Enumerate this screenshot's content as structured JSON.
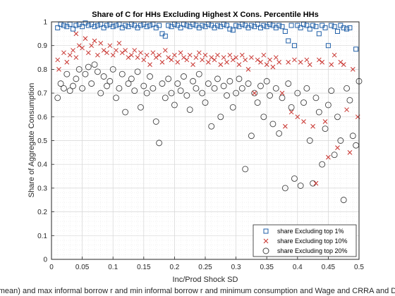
{
  "chart_data": {
    "type": "scatter",
    "title": "Share of C for HHs Excluding Highest X Cons. Percentile HHs",
    "xlabel": "Inc/Prod Shock SD",
    "ylabel": "Share of Aggregate Consumption",
    "footer_caption": "mean) and max informal borrow r and min informal borrow r and minimum consumption and Wage and CRRA and D",
    "xlim": [
      0,
      0.5
    ],
    "ylim": [
      0,
      1
    ],
    "xticks": [
      0,
      0.05,
      0.1,
      0.15,
      0.2,
      0.25,
      0.3,
      0.35,
      0.4,
      0.45,
      0.5
    ],
    "yticks": [
      0,
      0.1,
      0.2,
      0.3,
      0.4,
      0.5,
      0.6,
      0.7,
      0.8,
      0.9,
      1
    ],
    "xtick_labels": [
      "0",
      "0.05",
      "0.1",
      "0.15",
      "0.2",
      "0.25",
      "0.3",
      "0.35",
      "0.4",
      "0.45",
      "0.5"
    ],
    "ytick_labels": [
      "0",
      "0.1",
      "0.2",
      "0.3",
      "0.4",
      "0.5",
      "0.6",
      "0.7",
      "0.8",
      "0.9",
      "1"
    ],
    "grid": true,
    "minor_grid": true,
    "legend_position": "bottom-right",
    "series": [
      {
        "name": "share Excluding top 1%",
        "marker": "square",
        "color": "#1f5fa8",
        "points": [
          [
            0.01,
            0.975
          ],
          [
            0.015,
            0.99
          ],
          [
            0.02,
            0.985
          ],
          [
            0.025,
            0.98
          ],
          [
            0.03,
            0.99
          ],
          [
            0.035,
            0.97
          ],
          [
            0.04,
            0.985
          ],
          [
            0.045,
            0.99
          ],
          [
            0.05,
            0.98
          ],
          [
            0.055,
            0.995
          ],
          [
            0.06,
            0.985
          ],
          [
            0.065,
            0.99
          ],
          [
            0.07,
            0.98
          ],
          [
            0.075,
            0.985
          ],
          [
            0.08,
            0.99
          ],
          [
            0.085,
            0.975
          ],
          [
            0.09,
            0.985
          ],
          [
            0.095,
            0.99
          ],
          [
            0.1,
            0.98
          ],
          [
            0.105,
            0.985
          ],
          [
            0.11,
            0.99
          ],
          [
            0.115,
            0.975
          ],
          [
            0.12,
            0.985
          ],
          [
            0.125,
            0.98
          ],
          [
            0.13,
            0.99
          ],
          [
            0.135,
            0.985
          ],
          [
            0.14,
            0.975
          ],
          [
            0.145,
            0.985
          ],
          [
            0.15,
            0.99
          ],
          [
            0.155,
            0.98
          ],
          [
            0.16,
            0.985
          ],
          [
            0.165,
            0.99
          ],
          [
            0.17,
            0.975
          ],
          [
            0.175,
            0.985
          ],
          [
            0.18,
            0.95
          ],
          [
            0.185,
            0.94
          ],
          [
            0.19,
            0.985
          ],
          [
            0.195,
            0.98
          ],
          [
            0.2,
            0.99
          ],
          [
            0.205,
            0.985
          ],
          [
            0.21,
            0.975
          ],
          [
            0.215,
            0.99
          ],
          [
            0.22,
            0.985
          ],
          [
            0.225,
            0.98
          ],
          [
            0.23,
            0.99
          ],
          [
            0.235,
            0.985
          ],
          [
            0.24,
            0.975
          ],
          [
            0.245,
            0.985
          ],
          [
            0.25,
            0.98
          ],
          [
            0.255,
            0.99
          ],
          [
            0.26,
            0.985
          ],
          [
            0.265,
            0.975
          ],
          [
            0.27,
            0.985
          ],
          [
            0.275,
            0.98
          ],
          [
            0.28,
            0.99
          ],
          [
            0.285,
            0.985
          ],
          [
            0.29,
            0.97
          ],
          [
            0.295,
            0.965
          ],
          [
            0.3,
            0.985
          ],
          [
            0.305,
            0.98
          ],
          [
            0.31,
            0.99
          ],
          [
            0.315,
            0.985
          ],
          [
            0.32,
            0.975
          ],
          [
            0.325,
            0.985
          ],
          [
            0.33,
            0.98
          ],
          [
            0.335,
            0.99
          ],
          [
            0.34,
            0.975
          ],
          [
            0.345,
            0.985
          ],
          [
            0.35,
            0.98
          ],
          [
            0.355,
            0.99
          ],
          [
            0.36,
            0.985
          ],
          [
            0.365,
            0.975
          ],
          [
            0.37,
            0.985
          ],
          [
            0.375,
            0.98
          ],
          [
            0.38,
            0.96
          ],
          [
            0.385,
            0.92
          ],
          [
            0.39,
            0.985
          ],
          [
            0.395,
            0.9
          ],
          [
            0.4,
            0.985
          ],
          [
            0.405,
            0.975
          ],
          [
            0.41,
            0.99
          ],
          [
            0.415,
            0.985
          ],
          [
            0.42,
            0.97
          ],
          [
            0.425,
            0.985
          ],
          [
            0.43,
            0.98
          ],
          [
            0.435,
            0.95
          ],
          [
            0.44,
            0.985
          ],
          [
            0.445,
            0.975
          ],
          [
            0.45,
            0.9
          ],
          [
            0.455,
            0.985
          ],
          [
            0.46,
            0.98
          ],
          [
            0.465,
            0.96
          ],
          [
            0.47,
            0.985
          ],
          [
            0.475,
            0.975
          ],
          [
            0.48,
            0.97
          ],
          [
            0.485,
            0.975
          ],
          [
            0.495,
            0.885
          ]
        ]
      },
      {
        "name": "share Excluding top 10%",
        "marker": "x",
        "color": "#c8312c",
        "points": [
          [
            0.01,
            0.84
          ],
          [
            0.012,
            0.8
          ],
          [
            0.02,
            0.87
          ],
          [
            0.025,
            0.83
          ],
          [
            0.03,
            0.86
          ],
          [
            0.035,
            0.88
          ],
          [
            0.04,
            0.85
          ],
          [
            0.045,
            0.9
          ],
          [
            0.05,
            0.89
          ],
          [
            0.055,
            0.93
          ],
          [
            0.06,
            0.87
          ],
          [
            0.065,
            0.9
          ],
          [
            0.07,
            0.92
          ],
          [
            0.075,
            0.86
          ],
          [
            0.08,
            0.91
          ],
          [
            0.085,
            0.88
          ],
          [
            0.09,
            0.87
          ],
          [
            0.095,
            0.9
          ],
          [
            0.1,
            0.86
          ],
          [
            0.105,
            0.88
          ],
          [
            0.11,
            0.91
          ],
          [
            0.115,
            0.87
          ],
          [
            0.12,
            0.88
          ],
          [
            0.125,
            0.85
          ],
          [
            0.13,
            0.86
          ],
          [
            0.135,
            0.88
          ],
          [
            0.14,
            0.85
          ],
          [
            0.145,
            0.87
          ],
          [
            0.15,
            0.84
          ],
          [
            0.155,
            0.86
          ],
          [
            0.16,
            0.82
          ],
          [
            0.165,
            0.87
          ],
          [
            0.17,
            0.85
          ],
          [
            0.175,
            0.86
          ],
          [
            0.18,
            0.83
          ],
          [
            0.185,
            0.88
          ],
          [
            0.19,
            0.85
          ],
          [
            0.195,
            0.84
          ],
          [
            0.2,
            0.86
          ],
          [
            0.205,
            0.83
          ],
          [
            0.21,
            0.87
          ],
          [
            0.215,
            0.85
          ],
          [
            0.22,
            0.84
          ],
          [
            0.225,
            0.86
          ],
          [
            0.23,
            0.82
          ],
          [
            0.235,
            0.85
          ],
          [
            0.24,
            0.87
          ],
          [
            0.245,
            0.84
          ],
          [
            0.25,
            0.86
          ],
          [
            0.255,
            0.83
          ],
          [
            0.26,
            0.85
          ],
          [
            0.265,
            0.84
          ],
          [
            0.27,
            0.86
          ],
          [
            0.275,
            0.82
          ],
          [
            0.28,
            0.85
          ],
          [
            0.285,
            0.83
          ],
          [
            0.29,
            0.86
          ],
          [
            0.295,
            0.84
          ],
          [
            0.3,
            0.85
          ],
          [
            0.305,
            0.82
          ],
          [
            0.31,
            0.86
          ],
          [
            0.315,
            0.84
          ],
          [
            0.32,
            0.8
          ],
          [
            0.325,
            0.85
          ],
          [
            0.33,
            0.7
          ],
          [
            0.335,
            0.84
          ],
          [
            0.34,
            0.83
          ],
          [
            0.345,
            0.86
          ],
          [
            0.35,
            0.82
          ],
          [
            0.355,
            0.84
          ],
          [
            0.36,
            0.81
          ],
          [
            0.365,
            0.85
          ],
          [
            0.37,
            0.83
          ],
          [
            0.375,
            0.7
          ],
          [
            0.38,
            0.56
          ],
          [
            0.385,
            0.83
          ],
          [
            0.39,
            0.62
          ],
          [
            0.395,
            0.84
          ],
          [
            0.4,
            0.6
          ],
          [
            0.405,
            0.83
          ],
          [
            0.41,
            0.58
          ],
          [
            0.415,
            0.84
          ],
          [
            0.42,
            0.82
          ],
          [
            0.425,
            0.56
          ],
          [
            0.43,
            0.32
          ],
          [
            0.435,
            0.84
          ],
          [
            0.44,
            0.83
          ],
          [
            0.445,
            0.58
          ],
          [
            0.45,
            0.43
          ],
          [
            0.455,
            0.82
          ],
          [
            0.46,
            0.86
          ],
          [
            0.465,
            0.47
          ],
          [
            0.47,
            0.83
          ],
          [
            0.475,
            0.82
          ],
          [
            0.48,
            0.63
          ],
          [
            0.485,
            0.45
          ],
          [
            0.49,
            0.8
          ],
          [
            0.498,
            0.6
          ],
          [
            0.04,
            0.95
          ]
        ]
      },
      {
        "name": "share Excluding top 20%",
        "marker": "circle",
        "color": "#444444",
        "points": [
          [
            0.01,
            0.68
          ],
          [
            0.015,
            0.74
          ],
          [
            0.02,
            0.72
          ],
          [
            0.025,
            0.78
          ],
          [
            0.03,
            0.71
          ],
          [
            0.035,
            0.73
          ],
          [
            0.04,
            0.76
          ],
          [
            0.045,
            0.8
          ],
          [
            0.05,
            0.72
          ],
          [
            0.055,
            0.78
          ],
          [
            0.06,
            0.81
          ],
          [
            0.065,
            0.74
          ],
          [
            0.07,
            0.82
          ],
          [
            0.075,
            0.79
          ],
          [
            0.08,
            0.7
          ],
          [
            0.085,
            0.77
          ],
          [
            0.09,
            0.73
          ],
          [
            0.095,
            0.75
          ],
          [
            0.1,
            0.8
          ],
          [
            0.105,
            0.68
          ],
          [
            0.11,
            0.72
          ],
          [
            0.115,
            0.78
          ],
          [
            0.12,
            0.62
          ],
          [
            0.125,
            0.74
          ],
          [
            0.13,
            0.76
          ],
          [
            0.135,
            0.71
          ],
          [
            0.14,
            0.79
          ],
          [
            0.145,
            0.64
          ],
          [
            0.15,
            0.73
          ],
          [
            0.155,
            0.7
          ],
          [
            0.16,
            0.77
          ],
          [
            0.165,
            0.72
          ],
          [
            0.17,
            0.58
          ],
          [
            0.175,
            0.49
          ],
          [
            0.18,
            0.74
          ],
          [
            0.185,
            0.68
          ],
          [
            0.19,
            0.76
          ],
          [
            0.195,
            0.7
          ],
          [
            0.2,
            0.65
          ],
          [
            0.205,
            0.74
          ],
          [
            0.21,
            0.71
          ],
          [
            0.215,
            0.77
          ],
          [
            0.22,
            0.69
          ],
          [
            0.225,
            0.63
          ],
          [
            0.23,
            0.75
          ],
          [
            0.235,
            0.72
          ],
          [
            0.24,
            0.78
          ],
          [
            0.245,
            0.7
          ],
          [
            0.25,
            0.66
          ],
          [
            0.255,
            0.74
          ],
          [
            0.26,
            0.56
          ],
          [
            0.265,
            0.72
          ],
          [
            0.27,
            0.76
          ],
          [
            0.275,
            0.6
          ],
          [
            0.28,
            0.73
          ],
          [
            0.285,
            0.69
          ],
          [
            0.29,
            0.75
          ],
          [
            0.295,
            0.64
          ],
          [
            0.3,
            0.7
          ],
          [
            0.305,
            0.76
          ],
          [
            0.31,
            0.72
          ],
          [
            0.315,
            0.38
          ],
          [
            0.32,
            0.74
          ],
          [
            0.325,
            0.52
          ],
          [
            0.33,
            0.7
          ],
          [
            0.335,
            0.66
          ],
          [
            0.34,
            0.73
          ],
          [
            0.345,
            0.6
          ],
          [
            0.35,
            0.75
          ],
          [
            0.355,
            0.69
          ],
          [
            0.36,
            0.57
          ],
          [
            0.365,
            0.72
          ],
          [
            0.37,
            0.53
          ],
          [
            0.375,
            0.68
          ],
          [
            0.38,
            0.3
          ],
          [
            0.385,
            0.74
          ],
          [
            0.39,
            0.64
          ],
          [
            0.395,
            0.34
          ],
          [
            0.4,
            0.7
          ],
          [
            0.405,
            0.31
          ],
          [
            0.41,
            0.66
          ],
          [
            0.415,
            0.72
          ],
          [
            0.42,
            0.5
          ],
          [
            0.425,
            0.32
          ],
          [
            0.43,
            0.68
          ],
          [
            0.435,
            0.62
          ],
          [
            0.44,
            0.4
          ],
          [
            0.445,
            0.55
          ],
          [
            0.45,
            0.65
          ],
          [
            0.455,
            0.71
          ],
          [
            0.46,
            0.44
          ],
          [
            0.465,
            0.6
          ],
          [
            0.47,
            0.5
          ],
          [
            0.475,
            0.25
          ],
          [
            0.48,
            0.72
          ],
          [
            0.485,
            0.67
          ],
          [
            0.49,
            0.52
          ],
          [
            0.495,
            0.48
          ],
          [
            0.5,
            0.75
          ]
        ]
      }
    ]
  }
}
